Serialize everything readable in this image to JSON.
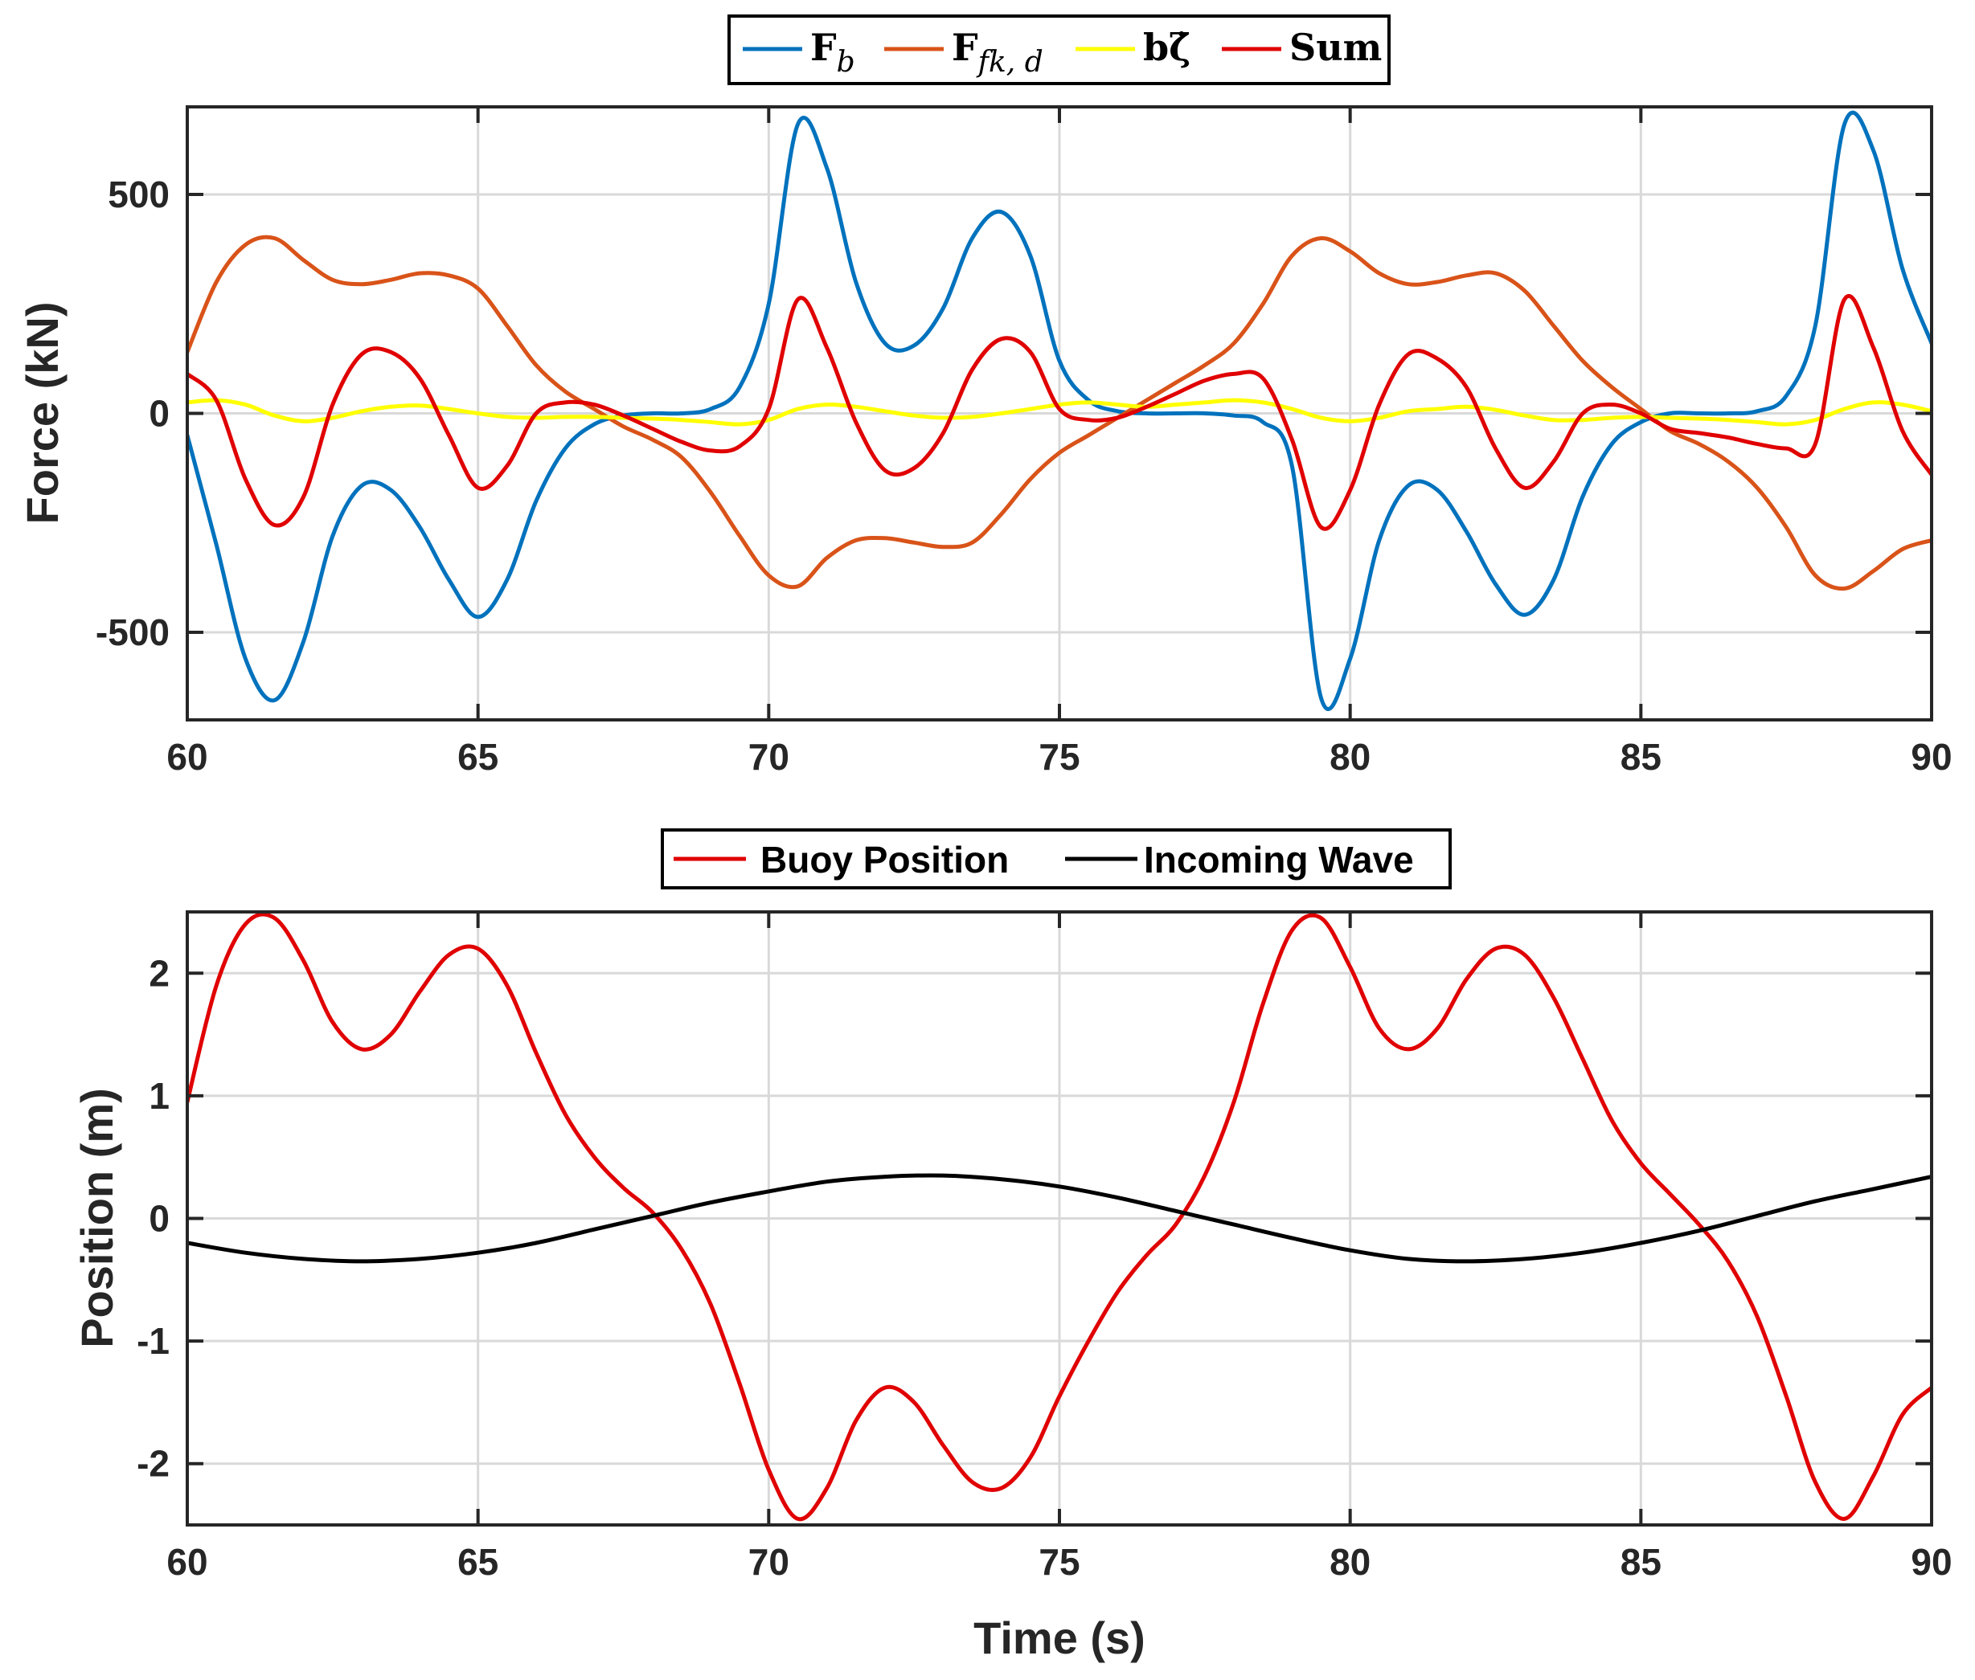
{
  "colors": {
    "Fb": "#0072BD",
    "Ffk": "#D95319",
    "bzeta": "#FFFF00",
    "sum": "#E00000",
    "buoy": "#E00000",
    "wave": "#000000",
    "grid": "#D9D9D9",
    "axis": "#262626"
  },
  "chart_data": [
    {
      "type": "line",
      "title": "",
      "xlabel": "",
      "ylabel": "Force (kN)",
      "xlim": [
        60,
        90
      ],
      "ylim": [
        -700,
        700
      ],
      "grid": true,
      "legend_position": "top-center-outside",
      "xticks": [
        60,
        65,
        70,
        75,
        80,
        85,
        90
      ],
      "xtick_labels": [
        "60",
        "65",
        "70",
        "75",
        "80",
        "85",
        "90"
      ],
      "yticks": [
        500,
        0,
        -500
      ],
      "ytick_labels": [
        "500",
        "0",
        "-500"
      ],
      "legend": {
        "Fb": {
          "main": "F",
          "sub": "b"
        },
        "Ffk": {
          "main": "F",
          "sub": "fk, d"
        },
        "bzeta": {
          "main": "bζ̇"
        },
        "sum": {
          "main": "Sum"
        }
      },
      "series": [
        {
          "name": "Fb",
          "color_key": "Fb",
          "x": [
            60,
            60.5,
            61,
            61.5,
            62,
            62.5,
            63,
            63.5,
            64,
            64.5,
            65,
            65.5,
            66,
            66.5,
            67,
            67.5,
            68,
            68.5,
            69,
            69.5,
            70,
            70.5,
            71,
            71.5,
            72,
            72.5,
            73,
            73.5,
            74,
            74.5,
            75,
            75.5,
            76,
            76.5,
            77,
            77.5,
            78,
            78.5,
            79,
            79.5,
            80,
            80.5,
            81,
            81.5,
            82,
            82.5,
            83,
            83.5,
            84,
            84.5,
            85,
            85.5,
            86,
            86.5,
            87,
            87.5,
            88,
            88.5,
            89,
            89.5,
            90
          ],
          "y": [
            -50,
            -300,
            -560,
            -655,
            -520,
            -280,
            -165,
            -175,
            -260,
            -380,
            -465,
            -380,
            -200,
            -80,
            -25,
            -5,
            0,
            0,
            10,
            60,
            250,
            660,
            560,
            300,
            160,
            155,
            240,
            400,
            460,
            360,
            120,
            30,
            5,
            0,
            0,
            0,
            -5,
            -20,
            -120,
            -650,
            -560,
            -290,
            -165,
            -175,
            -270,
            -390,
            -460,
            -380,
            -190,
            -70,
            -20,
            0,
            0,
            0,
            5,
            40,
            200,
            660,
            600,
            330,
            160
          ]
        },
        {
          "name": "Ffk",
          "color_key": "Ffk",
          "x": [
            60,
            60.5,
            61,
            61.5,
            62,
            62.5,
            63,
            63.5,
            64,
            64.5,
            65,
            65.5,
            66,
            66.5,
            67,
            67.5,
            68,
            68.5,
            69,
            69.5,
            70,
            70.5,
            71,
            71.5,
            72,
            72.5,
            73,
            73.5,
            74,
            74.5,
            75,
            75.5,
            76,
            76.5,
            77,
            77.5,
            78,
            78.5,
            79,
            79.5,
            80,
            80.5,
            81,
            81.5,
            82,
            82.5,
            83,
            83.5,
            84,
            84.5,
            85,
            85.5,
            86,
            86.5,
            87,
            87.5,
            88,
            88.5,
            89,
            89.5,
            90
          ],
          "y": [
            140,
            300,
            385,
            400,
            350,
            305,
            295,
            305,
            320,
            315,
            285,
            200,
            110,
            50,
            10,
            -30,
            -60,
            -100,
            -180,
            -280,
            -370,
            -395,
            -330,
            -290,
            -285,
            -295,
            -305,
            -295,
            -230,
            -150,
            -90,
            -50,
            -10,
            30,
            70,
            110,
            160,
            250,
            360,
            400,
            370,
            320,
            295,
            300,
            315,
            320,
            280,
            200,
            120,
            60,
            10,
            -40,
            -70,
            -110,
            -170,
            -260,
            -370,
            -400,
            -360,
            -310,
            -290
          ]
        },
        {
          "name": "bzeta",
          "color_key": "bzeta",
          "x": [
            60,
            60.5,
            61,
            61.5,
            62,
            62.5,
            63,
            63.5,
            64,
            64.5,
            65,
            65.5,
            66,
            66.5,
            67,
            67.5,
            68,
            68.5,
            69,
            69.5,
            70,
            70.5,
            71,
            71.5,
            72,
            72.5,
            73,
            73.5,
            74,
            74.5,
            75,
            75.5,
            76,
            76.5,
            77,
            77.5,
            78,
            78.5,
            79,
            79.5,
            80,
            80.5,
            81,
            81.5,
            82,
            82.5,
            83,
            83.5,
            84,
            84.5,
            85,
            85.5,
            86,
            86.5,
            87,
            87.5,
            88,
            88.5,
            89,
            89.5,
            90
          ],
          "y": [
            25,
            30,
            20,
            -5,
            -18,
            -10,
            5,
            15,
            18,
            10,
            0,
            -8,
            -10,
            -8,
            -8,
            -10,
            -12,
            -15,
            -20,
            -25,
            -15,
            10,
            20,
            15,
            5,
            -5,
            -10,
            -8,
            0,
            10,
            20,
            25,
            20,
            15,
            20,
            25,
            30,
            25,
            10,
            -10,
            -18,
            -10,
            5,
            10,
            15,
            8,
            -5,
            -15,
            -15,
            -10,
            -8,
            -10,
            -12,
            -15,
            -20,
            -25,
            -15,
            10,
            25,
            20,
            5
          ]
        },
        {
          "name": "Sum",
          "color_key": "sum",
          "x": [
            60,
            60.5,
            61,
            61.5,
            62,
            62.5,
            63,
            63.5,
            64,
            64.5,
            65,
            65.5,
            66,
            66.5,
            67,
            67.5,
            68,
            68.5,
            69,
            69.5,
            70,
            70.5,
            71,
            71.5,
            72,
            72.5,
            73,
            73.5,
            74,
            74.5,
            75,
            75.5,
            76,
            76.5,
            77,
            77.5,
            78,
            78.5,
            79,
            79.5,
            80,
            80.5,
            81,
            81.5,
            82,
            82.5,
            83,
            83.5,
            84,
            84.5,
            85,
            85.5,
            86,
            86.5,
            87,
            87.5,
            88,
            88.5,
            89,
            89.5,
            90
          ],
          "y": [
            90,
            30,
            -150,
            -255,
            -190,
            20,
            135,
            140,
            80,
            -50,
            -170,
            -120,
            0,
            25,
            20,
            -5,
            -35,
            -65,
            -85,
            -75,
            10,
            260,
            150,
            -20,
            -130,
            -125,
            -45,
            100,
            170,
            140,
            10,
            -15,
            -10,
            15,
            45,
            75,
            90,
            80,
            -60,
            -260,
            -175,
            20,
            135,
            125,
            60,
            -80,
            -170,
            -110,
            0,
            20,
            0,
            -35,
            -45,
            -55,
            -70,
            -80,
            -70,
            260,
            150,
            -40,
            -140
          ]
        }
      ]
    },
    {
      "type": "line",
      "title": "",
      "xlabel": "Time (s)",
      "ylabel": "Position (m)",
      "xlim": [
        60,
        90
      ],
      "ylim": [
        -2.5,
        2.5
      ],
      "grid": true,
      "legend_position": "top-center-outside",
      "xticks": [
        60,
        65,
        70,
        75,
        80,
        85,
        90
      ],
      "xtick_labels": [
        "60",
        "65",
        "70",
        "75",
        "80",
        "85",
        "90"
      ],
      "yticks": [
        2,
        1,
        0,
        -1,
        -2
      ],
      "ytick_labels": [
        "2",
        "1",
        "0",
        "-1",
        "-2"
      ],
      "series": [
        {
          "name": "Buoy Position",
          "color_key": "buoy",
          "x": [
            60,
            60.5,
            61,
            61.5,
            62,
            62.5,
            63,
            63.5,
            64,
            64.5,
            65,
            65.5,
            66,
            66.5,
            67,
            67.5,
            68,
            68.5,
            69,
            69.5,
            70,
            70.5,
            71,
            71.5,
            72,
            72.5,
            73,
            73.5,
            74,
            74.5,
            75,
            75.5,
            76,
            76.5,
            77,
            77.5,
            78,
            78.5,
            79,
            79.5,
            80,
            80.5,
            81,
            81.5,
            82,
            82.5,
            83,
            83.5,
            84,
            84.5,
            85,
            85.5,
            86,
            86.5,
            87,
            87.5,
            88,
            88.5,
            89,
            89.5,
            90
          ],
          "y": [
            0.95,
            1.9,
            2.4,
            2.45,
            2.1,
            1.6,
            1.38,
            1.5,
            1.85,
            2.15,
            2.2,
            1.9,
            1.35,
            0.85,
            0.5,
            0.25,
            0.05,
            -0.25,
            -0.7,
            -1.35,
            -2.05,
            -2.45,
            -2.2,
            -1.65,
            -1.38,
            -1.5,
            -1.85,
            -2.15,
            -2.2,
            -1.95,
            -1.45,
            -1.0,
            -0.6,
            -0.3,
            -0.05,
            0.35,
            0.95,
            1.75,
            2.35,
            2.45,
            2.05,
            1.55,
            1.38,
            1.55,
            1.95,
            2.2,
            2.15,
            1.8,
            1.3,
            0.8,
            0.45,
            0.2,
            -0.05,
            -0.35,
            -0.8,
            -1.45,
            -2.15,
            -2.45,
            -2.1,
            -1.6,
            -1.38
          ]
        },
        {
          "name": "Incoming Wave",
          "color_key": "wave",
          "x": [
            60,
            61,
            62,
            63,
            64,
            65,
            66,
            67,
            68,
            69,
            70,
            71,
            72,
            73,
            74,
            75,
            76,
            77,
            78,
            79,
            80,
            81,
            82,
            83,
            84,
            85,
            86,
            87,
            88,
            89,
            90
          ],
          "y": [
            -0.2,
            -0.28,
            -0.33,
            -0.35,
            -0.33,
            -0.28,
            -0.2,
            -0.09,
            0.02,
            0.13,
            0.22,
            0.3,
            0.34,
            0.35,
            0.32,
            0.26,
            0.17,
            0.06,
            -0.05,
            -0.16,
            -0.26,
            -0.33,
            -0.35,
            -0.33,
            -0.28,
            -0.2,
            -0.1,
            0.02,
            0.14,
            0.24,
            0.34
          ]
        }
      ]
    }
  ]
}
